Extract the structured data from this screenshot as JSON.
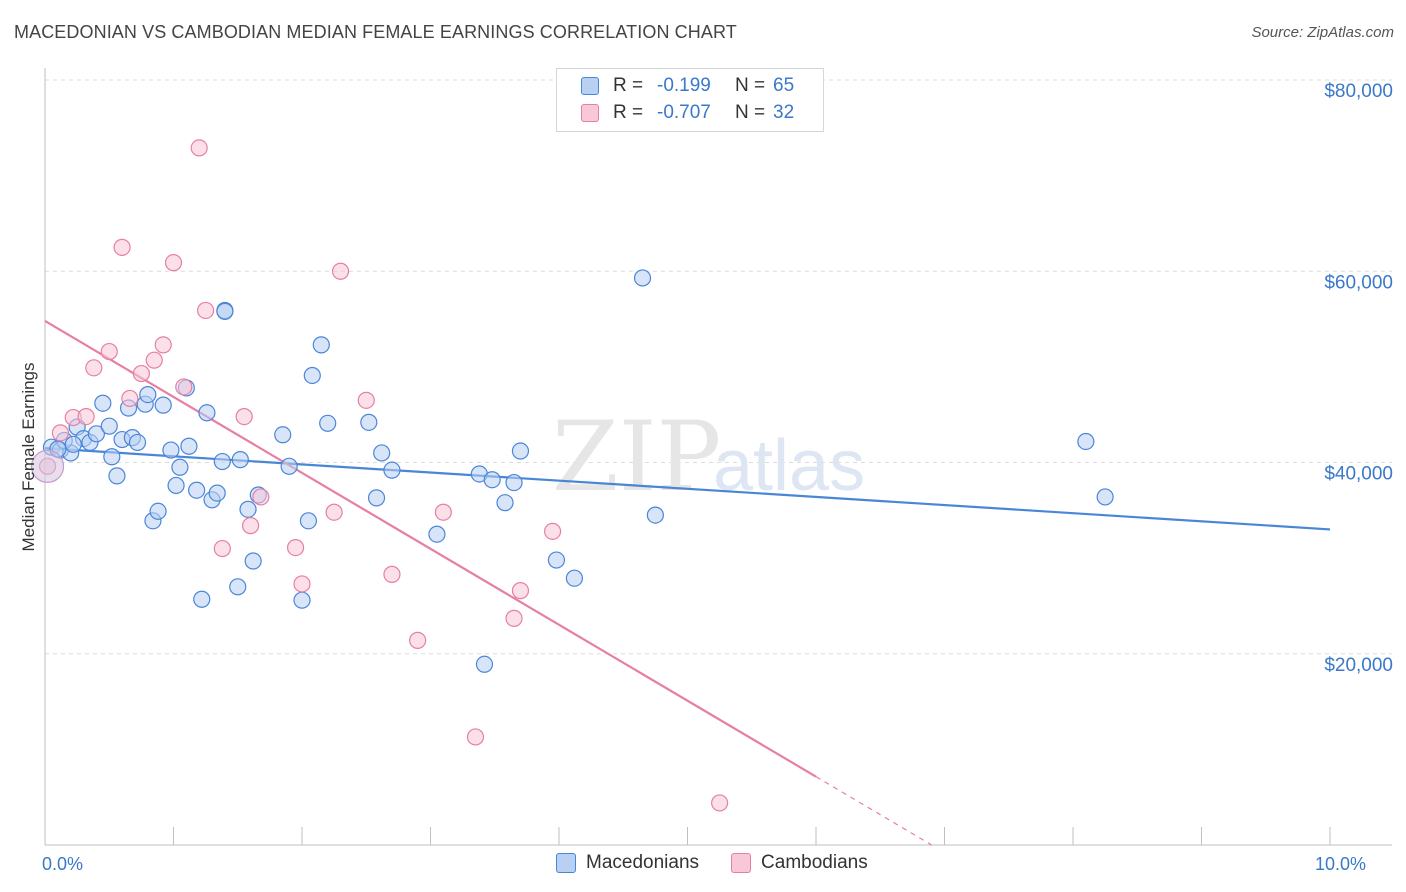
{
  "header": {
    "title": "MACEDONIAN VS CAMBODIAN MEDIAN FEMALE EARNINGS CORRELATION CHART",
    "source": "Source: ZipAtlas.com"
  },
  "legend": {
    "rows": [
      {
        "r_label": "R =",
        "r_value": "-0.199",
        "n_label": "N =",
        "n_value": "65",
        "color": "#4a86d8",
        "fill": "#b8d0f2"
      },
      {
        "r_label": "R =",
        "r_value": "-0.707",
        "n_label": "N =",
        "n_value": "32",
        "color": "#e77fa3",
        "fill": "#f8c7d8"
      }
    ],
    "bottom": [
      {
        "label": "Macedonians",
        "color": "#4a86d8",
        "fill": "#b8d0f2"
      },
      {
        "label": "Cambodians",
        "color": "#e77fa3",
        "fill": "#f8c7d8"
      }
    ]
  },
  "watermark": {
    "part1": "ZIP",
    "part2": "atlas"
  },
  "chart_data": {
    "type": "scatter",
    "ylabel": "Median Female Earnings",
    "xlabel": "",
    "xlim": [
      0,
      10
    ],
    "ylim": [
      0,
      80000
    ],
    "x_tick_labels": [
      {
        "x": 0,
        "label": "0.0%"
      },
      {
        "x": 10,
        "label": "10.0%"
      }
    ],
    "y_ticks": [
      {
        "y": 20000,
        "label": "$20,000"
      },
      {
        "y": 40000,
        "label": "$40,000"
      },
      {
        "y": 60000,
        "label": "$60,000"
      },
      {
        "y": 80000,
        "label": "$80,000"
      }
    ],
    "series": [
      {
        "name": "Macedonians",
        "stroke": "#4a86d8",
        "fill": "#b8d0f2",
        "trend": {
          "x0": 0.0,
          "y0": 41500,
          "x1": 10.0,
          "y1": 33000,
          "dash_from": null
        },
        "points": [
          [
            0.05,
            41600
          ],
          [
            0.12,
            41300
          ],
          [
            0.2,
            41000
          ],
          [
            0.25,
            43700
          ],
          [
            0.3,
            42500
          ],
          [
            0.35,
            42100
          ],
          [
            0.4,
            43000
          ],
          [
            0.45,
            46200
          ],
          [
            0.5,
            43800
          ],
          [
            0.52,
            40600
          ],
          [
            0.56,
            38600
          ],
          [
            0.6,
            42400
          ],
          [
            0.65,
            45700
          ],
          [
            0.68,
            42600
          ],
          [
            0.72,
            42100
          ],
          [
            0.78,
            46100
          ],
          [
            0.8,
            47100
          ],
          [
            0.84,
            33900
          ],
          [
            0.88,
            34900
          ],
          [
            0.92,
            46000
          ],
          [
            0.98,
            41300
          ],
          [
            1.02,
            37600
          ],
          [
            1.05,
            39500
          ],
          [
            1.1,
            47800
          ],
          [
            1.12,
            41700
          ],
          [
            1.18,
            37100
          ],
          [
            1.22,
            25700
          ],
          [
            1.26,
            45200
          ],
          [
            1.3,
            36100
          ],
          [
            1.34,
            36800
          ],
          [
            1.38,
            40100
          ],
          [
            1.4,
            55900
          ],
          [
            1.5,
            27000
          ],
          [
            1.52,
            40300
          ],
          [
            1.58,
            35100
          ],
          [
            1.62,
            29700
          ],
          [
            1.66,
            36600
          ],
          [
            1.85,
            42900
          ],
          [
            1.9,
            39600
          ],
          [
            2.0,
            25600
          ],
          [
            2.05,
            33900
          ],
          [
            2.08,
            49100
          ],
          [
            2.15,
            52300
          ],
          [
            2.2,
            44100
          ],
          [
            2.52,
            44200
          ],
          [
            2.58,
            36300
          ],
          [
            2.62,
            41000
          ],
          [
            2.7,
            39200
          ],
          [
            3.05,
            32500
          ],
          [
            3.38,
            38800
          ],
          [
            3.42,
            18900
          ],
          [
            3.48,
            38200
          ],
          [
            3.58,
            35800
          ],
          [
            3.65,
            37900
          ],
          [
            3.7,
            41200
          ],
          [
            3.98,
            29800
          ],
          [
            4.12,
            27900
          ],
          [
            4.65,
            59300
          ],
          [
            4.75,
            34500
          ],
          [
            8.1,
            42200
          ],
          [
            8.25,
            36400
          ],
          [
            1.4,
            55800
          ],
          [
            0.15,
            42300
          ],
          [
            0.22,
            41900
          ],
          [
            0.1,
            41400
          ]
        ]
      },
      {
        "name": "Cambodians",
        "stroke": "#e77fa3",
        "fill": "#f8c7d8",
        "trend": {
          "x0": 0.0,
          "y0": 54800,
          "x1": 6.9,
          "y1": 0,
          "dash_from": 6.0
        },
        "points": [
          [
            0.02,
            39600
          ],
          [
            0.12,
            43100
          ],
          [
            0.22,
            44700
          ],
          [
            0.32,
            44800
          ],
          [
            0.38,
            49900
          ],
          [
            0.5,
            51600
          ],
          [
            0.6,
            62500
          ],
          [
            0.66,
            46700
          ],
          [
            0.75,
            49300
          ],
          [
            0.85,
            50700
          ],
          [
            0.92,
            52300
          ],
          [
            1.0,
            60900
          ],
          [
            1.08,
            47900
          ],
          [
            1.2,
            72900
          ],
          [
            1.25,
            55900
          ],
          [
            1.38,
            31000
          ],
          [
            1.55,
            44800
          ],
          [
            1.6,
            33400
          ],
          [
            1.68,
            36400
          ],
          [
            1.95,
            31100
          ],
          [
            2.0,
            27300
          ],
          [
            2.25,
            34800
          ],
          [
            2.3,
            60000
          ],
          [
            2.5,
            46500
          ],
          [
            2.7,
            28300
          ],
          [
            2.9,
            21400
          ],
          [
            3.1,
            34800
          ],
          [
            3.35,
            11300
          ],
          [
            3.65,
            23700
          ],
          [
            3.7,
            26600
          ],
          [
            3.95,
            32800
          ],
          [
            5.25,
            4400
          ]
        ]
      }
    ]
  }
}
